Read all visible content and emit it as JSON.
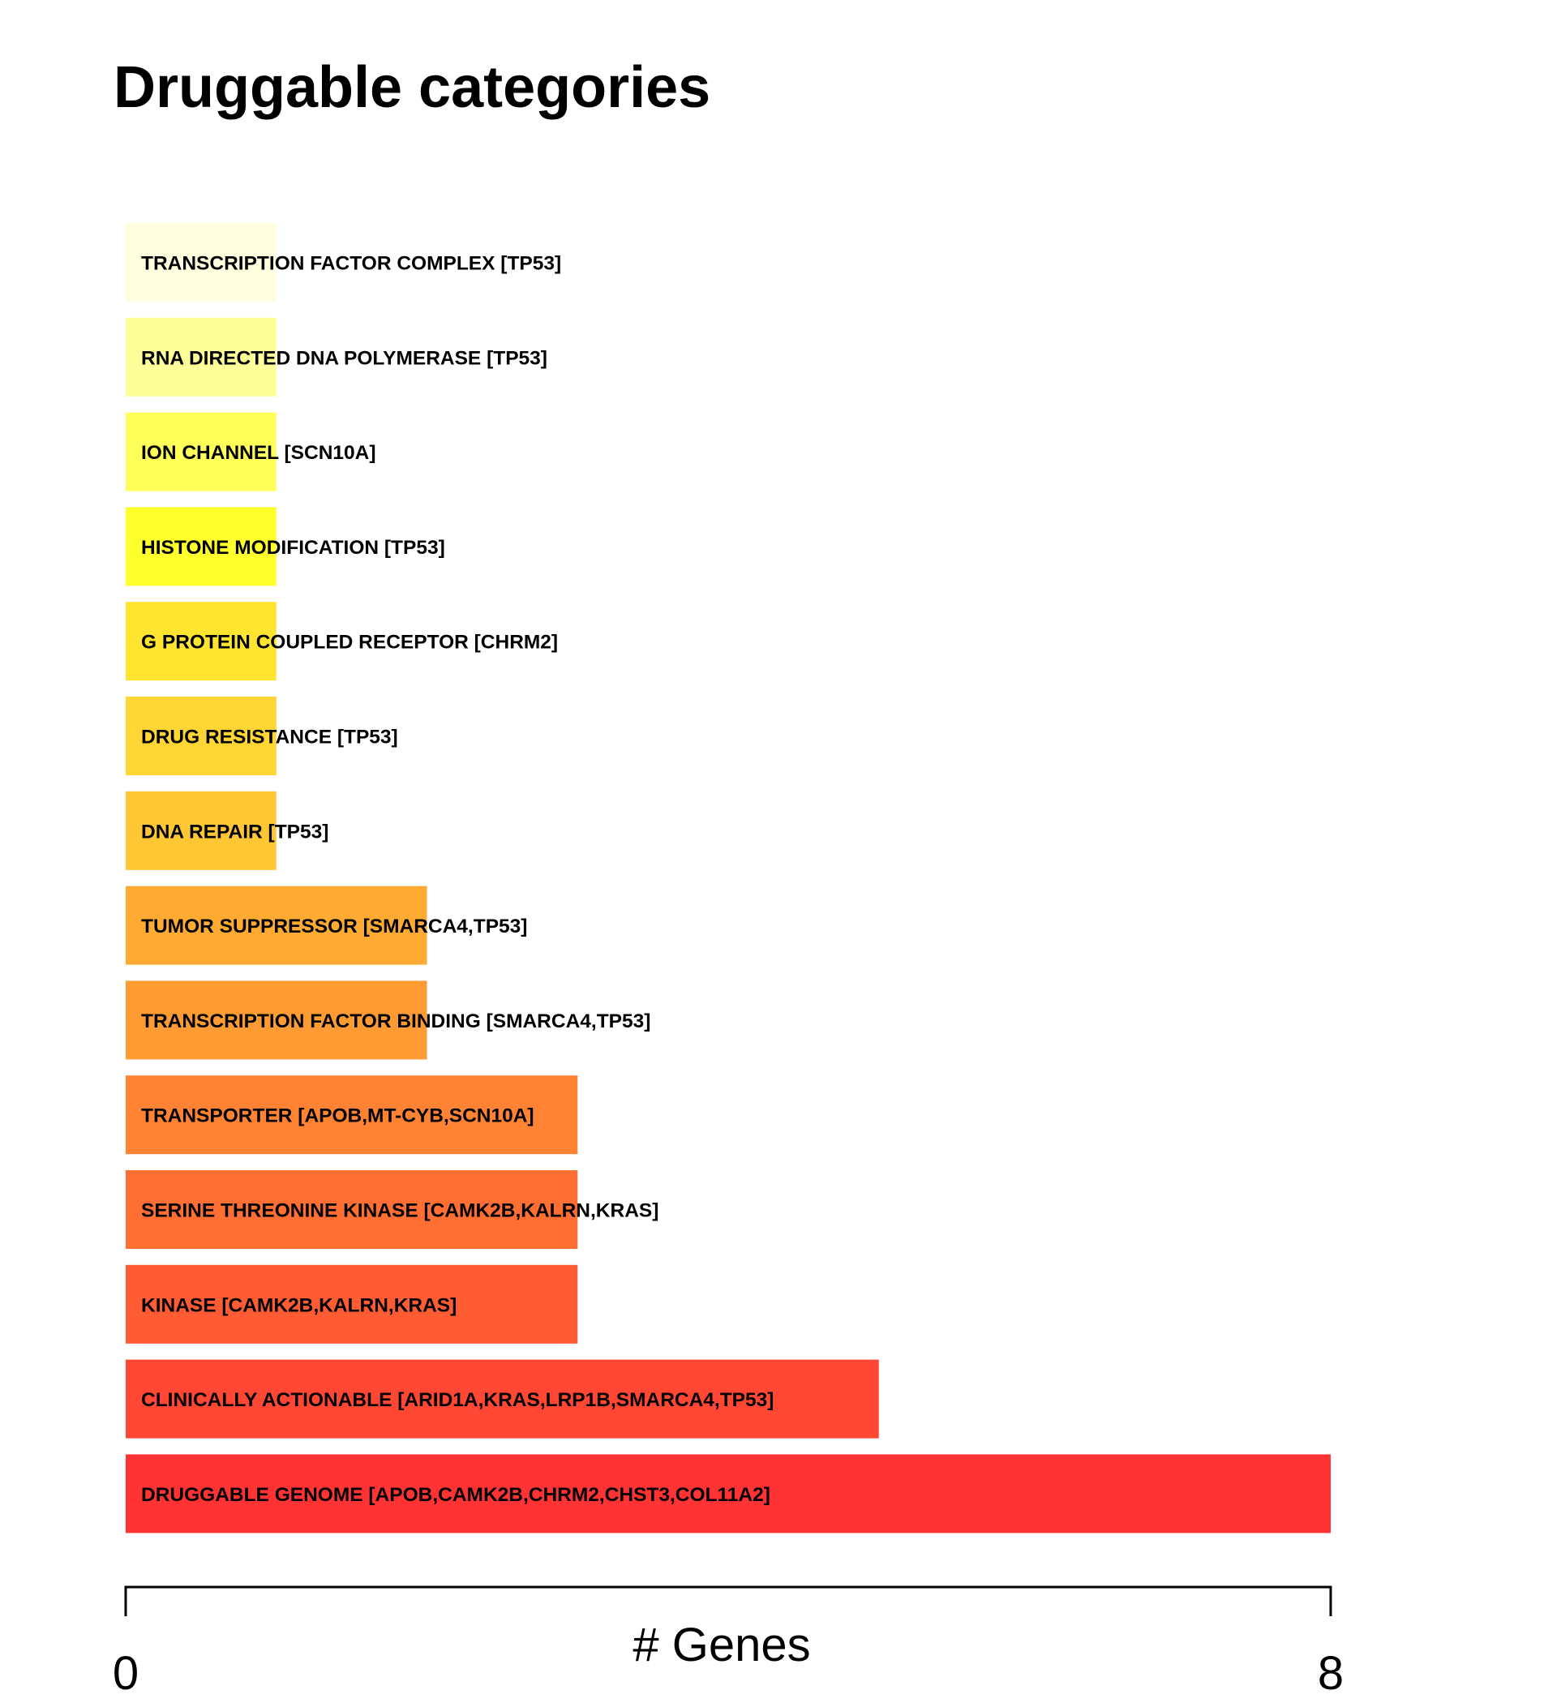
{
  "chart_data": {
    "type": "bar",
    "orientation": "horizontal",
    "title": "Druggable categories",
    "xlabel": "# Genes",
    "ylabel": "",
    "xlim": [
      0,
      8
    ],
    "x_ticks": [
      "0",
      "8"
    ],
    "grid": false,
    "legend": "none",
    "categories": [
      "TRANSCRIPTION FACTOR COMPLEX [TP53]",
      "RNA DIRECTED DNA POLYMERASE [TP53]",
      "ION CHANNEL [SCN10A]",
      "HISTONE MODIFICATION [TP53]",
      "G PROTEIN COUPLED RECEPTOR [CHRM2]",
      "DRUG RESISTANCE [TP53]",
      "DNA REPAIR [TP53]",
      "TUMOR SUPPRESSOR [SMARCA4,TP53]",
      "TRANSCRIPTION FACTOR BINDING [SMARCA4,TP53]",
      "TRANSPORTER [APOB,MT-CYB,SCN10A]",
      "SERINE THREONINE KINASE [CAMK2B,KALRN,KRAS]",
      "KINASE [CAMK2B,KALRN,KRAS]",
      "CLINICALLY ACTIONABLE [ARID1A,KRAS,LRP1B,SMARCA4,TP53]",
      "DRUGGABLE GENOME [APOB,CAMK2B,CHRM2,CHST3,COL11A2]"
    ],
    "values": [
      1,
      1,
      1,
      1,
      1,
      1,
      1,
      2,
      2,
      3,
      3,
      3,
      5,
      8
    ],
    "colors": [
      "#FFFFE0",
      "#FFFF99",
      "#FFFF59",
      "#FFFF2B",
      "#FFE530",
      "#FFD633",
      "#FFC733",
      "#FFAB33",
      "#FF9B33",
      "#FF8333",
      "#FF6E33",
      "#FF5C33",
      "#FF4733",
      "#FF3333"
    ]
  }
}
